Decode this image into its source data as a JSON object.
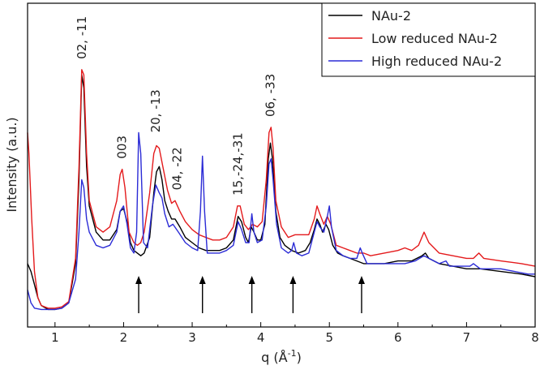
{
  "chart_data": {
    "type": "line",
    "xlabel": "q (Å⁻¹)",
    "xlabel_parts": {
      "main": "q (",
      "unit": "Å",
      "sup": "-1",
      "close": ")"
    },
    "ylabel": "Intensity (a.u.)",
    "xlim": [
      0.6,
      8
    ],
    "ylim": [
      0,
      1
    ],
    "x_ticks": [
      1,
      2,
      3,
      4,
      5,
      6,
      7,
      8
    ],
    "x_tick_labels": [
      "1",
      "2",
      "3",
      "4",
      "5",
      "6",
      "7",
      "8"
    ],
    "legend_position": "top-right",
    "series": [
      {
        "name": "NAu-2",
        "color": "#000000",
        "points": [
          [
            0.6,
            0.18
          ],
          [
            0.65,
            0.15
          ],
          [
            0.7,
            0.1
          ],
          [
            0.75,
            0.05
          ],
          [
            0.8,
            0.02
          ],
          [
            0.9,
            0.005
          ],
          [
            1.0,
            0.005
          ],
          [
            1.1,
            0.01
          ],
          [
            1.2,
            0.03
          ],
          [
            1.3,
            0.18
          ],
          [
            1.35,
            0.5
          ],
          [
            1.39,
            0.9
          ],
          [
            1.42,
            0.85
          ],
          [
            1.46,
            0.55
          ],
          [
            1.5,
            0.4
          ],
          [
            1.6,
            0.3
          ],
          [
            1.7,
            0.27
          ],
          [
            1.8,
            0.27
          ],
          [
            1.9,
            0.31
          ],
          [
            1.95,
            0.38
          ],
          [
            2.0,
            0.39
          ],
          [
            2.05,
            0.34
          ],
          [
            2.1,
            0.26
          ],
          [
            2.15,
            0.23
          ],
          [
            2.2,
            0.22
          ],
          [
            2.25,
            0.21
          ],
          [
            2.3,
            0.22
          ],
          [
            2.38,
            0.28
          ],
          [
            2.44,
            0.45
          ],
          [
            2.48,
            0.53
          ],
          [
            2.52,
            0.55
          ],
          [
            2.56,
            0.5
          ],
          [
            2.6,
            0.42
          ],
          [
            2.65,
            0.38
          ],
          [
            2.7,
            0.35
          ],
          [
            2.75,
            0.35
          ],
          [
            2.82,
            0.32
          ],
          [
            2.9,
            0.28
          ],
          [
            3.0,
            0.26
          ],
          [
            3.1,
            0.24
          ],
          [
            3.2,
            0.23
          ],
          [
            3.3,
            0.23
          ],
          [
            3.4,
            0.23
          ],
          [
            3.5,
            0.24
          ],
          [
            3.6,
            0.27
          ],
          [
            3.67,
            0.36
          ],
          [
            3.72,
            0.34
          ],
          [
            3.78,
            0.28
          ],
          [
            3.82,
            0.26
          ],
          [
            3.86,
            0.32
          ],
          [
            3.9,
            0.3
          ],
          [
            3.95,
            0.27
          ],
          [
            4.0,
            0.27
          ],
          [
            4.06,
            0.33
          ],
          [
            4.11,
            0.58
          ],
          [
            4.14,
            0.64
          ],
          [
            4.17,
            0.58
          ],
          [
            4.22,
            0.38
          ],
          [
            4.28,
            0.28
          ],
          [
            4.35,
            0.25
          ],
          [
            4.45,
            0.23
          ],
          [
            4.55,
            0.22
          ],
          [
            4.65,
            0.23
          ],
          [
            4.72,
            0.26
          ],
          [
            4.78,
            0.31
          ],
          [
            4.82,
            0.35
          ],
          [
            4.86,
            0.33
          ],
          [
            4.9,
            0.3
          ],
          [
            4.95,
            0.33
          ],
          [
            4.99,
            0.31
          ],
          [
            5.05,
            0.25
          ],
          [
            5.12,
            0.22
          ],
          [
            5.2,
            0.21
          ],
          [
            5.3,
            0.2
          ],
          [
            5.4,
            0.19
          ],
          [
            5.5,
            0.18
          ],
          [
            5.6,
            0.18
          ],
          [
            5.8,
            0.18
          ],
          [
            6.0,
            0.19
          ],
          [
            6.2,
            0.19
          ],
          [
            6.35,
            0.21
          ],
          [
            6.4,
            0.22
          ],
          [
            6.45,
            0.2
          ],
          [
            6.6,
            0.18
          ],
          [
            6.8,
            0.17
          ],
          [
            7.0,
            0.16
          ],
          [
            7.2,
            0.16
          ],
          [
            7.5,
            0.15
          ],
          [
            7.8,
            0.14
          ],
          [
            8.0,
            0.13
          ]
        ]
      },
      {
        "name": "Low reduced NAu-2",
        "color": "#e41a1c",
        "points": [
          [
            0.6,
            0.68
          ],
          [
            0.62,
            0.6
          ],
          [
            0.66,
            0.35
          ],
          [
            0.7,
            0.15
          ],
          [
            0.75,
            0.05
          ],
          [
            0.8,
            0.02
          ],
          [
            0.9,
            0.01
          ],
          [
            1.0,
            0.01
          ],
          [
            1.1,
            0.015
          ],
          [
            1.2,
            0.035
          ],
          [
            1.3,
            0.2
          ],
          [
            1.35,
            0.55
          ],
          [
            1.39,
            0.92
          ],
          [
            1.42,
            0.9
          ],
          [
            1.46,
            0.6
          ],
          [
            1.5,
            0.42
          ],
          [
            1.6,
            0.32
          ],
          [
            1.7,
            0.3
          ],
          [
            1.8,
            0.32
          ],
          [
            1.9,
            0.42
          ],
          [
            1.95,
            0.52
          ],
          [
            1.98,
            0.54
          ],
          [
            2.02,
            0.47
          ],
          [
            2.08,
            0.3
          ],
          [
            2.15,
            0.26
          ],
          [
            2.2,
            0.25
          ],
          [
            2.25,
            0.26
          ],
          [
            2.3,
            0.3
          ],
          [
            2.38,
            0.45
          ],
          [
            2.44,
            0.6
          ],
          [
            2.48,
            0.63
          ],
          [
            2.52,
            0.62
          ],
          [
            2.58,
            0.54
          ],
          [
            2.64,
            0.46
          ],
          [
            2.7,
            0.41
          ],
          [
            2.75,
            0.42
          ],
          [
            2.82,
            0.38
          ],
          [
            2.9,
            0.34
          ],
          [
            3.0,
            0.31
          ],
          [
            3.1,
            0.29
          ],
          [
            3.2,
            0.28
          ],
          [
            3.3,
            0.27
          ],
          [
            3.4,
            0.27
          ],
          [
            3.5,
            0.28
          ],
          [
            3.6,
            0.32
          ],
          [
            3.66,
            0.4
          ],
          [
            3.7,
            0.4
          ],
          [
            3.76,
            0.33
          ],
          [
            3.82,
            0.31
          ],
          [
            3.88,
            0.33
          ],
          [
            3.95,
            0.32
          ],
          [
            4.02,
            0.34
          ],
          [
            4.08,
            0.5
          ],
          [
            4.12,
            0.68
          ],
          [
            4.15,
            0.7
          ],
          [
            4.18,
            0.62
          ],
          [
            4.22,
            0.42
          ],
          [
            4.3,
            0.32
          ],
          [
            4.4,
            0.28
          ],
          [
            4.5,
            0.29
          ],
          [
            4.6,
            0.29
          ],
          [
            4.7,
            0.29
          ],
          [
            4.78,
            0.35
          ],
          [
            4.82,
            0.4
          ],
          [
            4.86,
            0.37
          ],
          [
            4.92,
            0.33
          ],
          [
            4.97,
            0.36
          ],
          [
            5.02,
            0.33
          ],
          [
            5.1,
            0.25
          ],
          [
            5.2,
            0.24
          ],
          [
            5.3,
            0.23
          ],
          [
            5.4,
            0.22
          ],
          [
            5.5,
            0.22
          ],
          [
            5.6,
            0.21
          ],
          [
            5.8,
            0.22
          ],
          [
            6.0,
            0.23
          ],
          [
            6.1,
            0.24
          ],
          [
            6.2,
            0.23
          ],
          [
            6.3,
            0.25
          ],
          [
            6.38,
            0.3
          ],
          [
            6.45,
            0.26
          ],
          [
            6.6,
            0.22
          ],
          [
            6.8,
            0.21
          ],
          [
            7.0,
            0.2
          ],
          [
            7.1,
            0.2
          ],
          [
            7.18,
            0.22
          ],
          [
            7.25,
            0.2
          ],
          [
            7.5,
            0.19
          ],
          [
            7.8,
            0.18
          ],
          [
            8.0,
            0.17
          ]
        ]
      },
      {
        "name": "High reduced NAu-2",
        "color": "#2b2bd6",
        "points": [
          [
            0.6,
            0.08
          ],
          [
            0.65,
            0.03
          ],
          [
            0.7,
            0.01
          ],
          [
            0.8,
            0.005
          ],
          [
            0.9,
            0.005
          ],
          [
            1.0,
            0.005
          ],
          [
            1.1,
            0.01
          ],
          [
            1.2,
            0.03
          ],
          [
            1.3,
            0.12
          ],
          [
            1.35,
            0.3
          ],
          [
            1.39,
            0.5
          ],
          [
            1.42,
            0.47
          ],
          [
            1.46,
            0.35
          ],
          [
            1.5,
            0.3
          ],
          [
            1.6,
            0.25
          ],
          [
            1.7,
            0.24
          ],
          [
            1.8,
            0.25
          ],
          [
            1.9,
            0.3
          ],
          [
            1.95,
            0.38
          ],
          [
            2.0,
            0.4
          ],
          [
            2.05,
            0.33
          ],
          [
            2.1,
            0.24
          ],
          [
            2.15,
            0.22
          ],
          [
            2.19,
            0.3
          ],
          [
            2.22,
            0.68
          ],
          [
            2.25,
            0.6
          ],
          [
            2.29,
            0.26
          ],
          [
            2.35,
            0.24
          ],
          [
            2.42,
            0.4
          ],
          [
            2.47,
            0.48
          ],
          [
            2.52,
            0.45
          ],
          [
            2.56,
            0.43
          ],
          [
            2.6,
            0.37
          ],
          [
            2.66,
            0.32
          ],
          [
            2.72,
            0.33
          ],
          [
            2.8,
            0.3
          ],
          [
            2.9,
            0.26
          ],
          [
            3.0,
            0.24
          ],
          [
            3.08,
            0.23
          ],
          [
            3.12,
            0.38
          ],
          [
            3.15,
            0.59
          ],
          [
            3.18,
            0.38
          ],
          [
            3.22,
            0.22
          ],
          [
            3.3,
            0.22
          ],
          [
            3.4,
            0.22
          ],
          [
            3.5,
            0.23
          ],
          [
            3.6,
            0.25
          ],
          [
            3.67,
            0.34
          ],
          [
            3.72,
            0.31
          ],
          [
            3.78,
            0.26
          ],
          [
            3.83,
            0.26
          ],
          [
            3.87,
            0.37
          ],
          [
            3.9,
            0.3
          ],
          [
            3.95,
            0.26
          ],
          [
            4.02,
            0.27
          ],
          [
            4.08,
            0.4
          ],
          [
            4.12,
            0.56
          ],
          [
            4.15,
            0.58
          ],
          [
            4.18,
            0.5
          ],
          [
            4.23,
            0.33
          ],
          [
            4.3,
            0.24
          ],
          [
            4.4,
            0.22
          ],
          [
            4.45,
            0.23
          ],
          [
            4.48,
            0.26
          ],
          [
            4.52,
            0.22
          ],
          [
            4.6,
            0.21
          ],
          [
            4.7,
            0.22
          ],
          [
            4.78,
            0.3
          ],
          [
            4.82,
            0.34
          ],
          [
            4.86,
            0.32
          ],
          [
            4.92,
            0.3
          ],
          [
            4.97,
            0.36
          ],
          [
            5.0,
            0.4
          ],
          [
            5.03,
            0.32
          ],
          [
            5.1,
            0.23
          ],
          [
            5.2,
            0.21
          ],
          [
            5.3,
            0.2
          ],
          [
            5.4,
            0.2
          ],
          [
            5.45,
            0.24
          ],
          [
            5.48,
            0.22
          ],
          [
            5.55,
            0.18
          ],
          [
            5.7,
            0.18
          ],
          [
            5.9,
            0.18
          ],
          [
            6.1,
            0.18
          ],
          [
            6.25,
            0.19
          ],
          [
            6.38,
            0.21
          ],
          [
            6.45,
            0.2
          ],
          [
            6.6,
            0.18
          ],
          [
            6.7,
            0.19
          ],
          [
            6.75,
            0.17
          ],
          [
            6.9,
            0.17
          ],
          [
            7.05,
            0.17
          ],
          [
            7.1,
            0.18
          ],
          [
            7.2,
            0.16
          ],
          [
            7.4,
            0.16
          ],
          [
            7.5,
            0.16
          ],
          [
            7.7,
            0.15
          ],
          [
            7.9,
            0.14
          ],
          [
            8.0,
            0.14
          ]
        ]
      }
    ],
    "peak_labels": [
      {
        "text": "02, -11",
        "x": 1.39,
        "y": 0.96,
        "rotate": true
      },
      {
        "text": "003",
        "x": 1.98,
        "y": 0.58,
        "rotate": true
      },
      {
        "text": "20, -13",
        "x": 2.47,
        "y": 0.68,
        "rotate": true
      },
      {
        "text": "04, -22",
        "x": 2.78,
        "y": 0.46,
        "rotate": true
      },
      {
        "text": "15,-24,-31",
        "x": 3.67,
        "y": 0.44,
        "rotate": true
      },
      {
        "text": "06, -33",
        "x": 4.14,
        "y": 0.74,
        "rotate": true
      }
    ],
    "arrows_at_x": [
      2.22,
      3.15,
      3.87,
      4.47,
      5.47
    ]
  }
}
